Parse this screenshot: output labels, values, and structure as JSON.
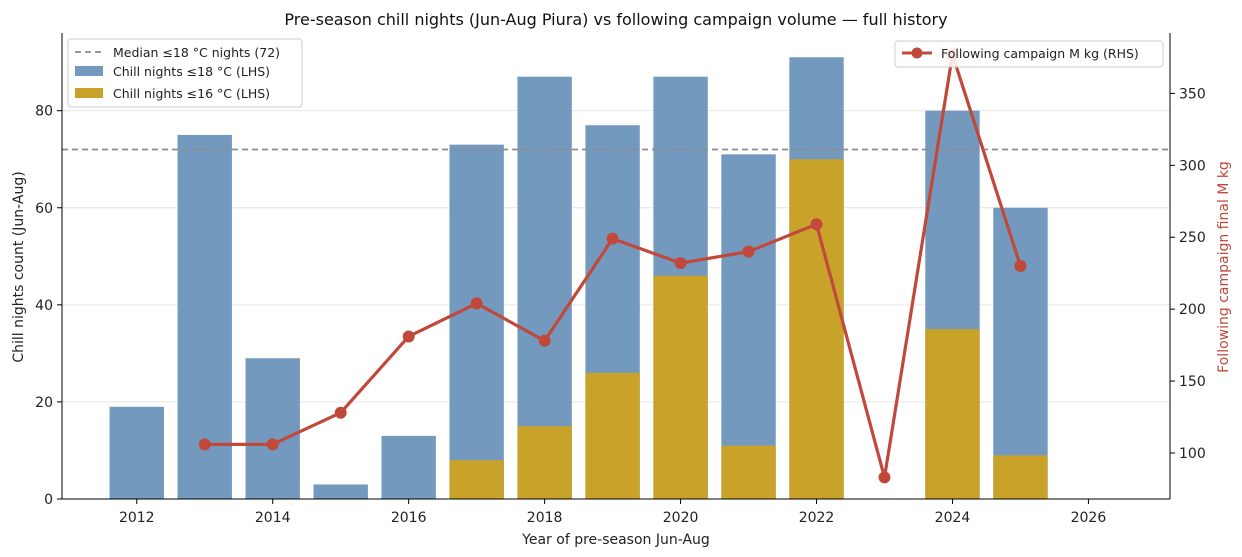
{
  "chart_data": {
    "type": "bar",
    "title": "Pre-season chill nights (Jun-Aug Piura) vs following campaign volume — full history",
    "xlabel": "Year of pre-season Jun-Aug",
    "ylabel": "Chill nights count (Jun-Aug)",
    "y2label": "Following campaign final M kg",
    "xlim": [
      2010.9,
      2027.2
    ],
    "ylim": [
      0,
      96
    ],
    "y2lim": [
      68,
      392
    ],
    "xticks": [
      2012,
      2014,
      2016,
      2018,
      2020,
      2022,
      2024,
      2026
    ],
    "yticks": [
      0,
      20,
      40,
      60,
      80
    ],
    "y2ticks": [
      100,
      150,
      200,
      250,
      300,
      350
    ],
    "grid": true,
    "median_line": {
      "label": "Median ≤18 °C nights (72)",
      "value": 72,
      "color": "#8c8c8c"
    },
    "series": [
      {
        "name": "Chill nights ≤18 °C (LHS)",
        "kind": "bar",
        "axis": "left",
        "color": "#7399bf",
        "x": [
          2012,
          2013,
          2014,
          2015,
          2016,
          2017,
          2018,
          2019,
          2020,
          2021,
          2022,
          2024,
          2025
        ],
        "values": [
          19,
          75,
          29,
          3,
          13,
          73,
          87,
          77,
          87,
          71,
          91,
          80,
          60
        ]
      },
      {
        "name": "Chill nights ≤16 °C (LHS)",
        "kind": "bar",
        "axis": "left",
        "color": "#c9a22a",
        "x": [
          2017,
          2018,
          2019,
          2020,
          2021,
          2022,
          2024,
          2025
        ],
        "values": [
          8,
          15,
          26,
          46,
          11,
          70,
          35,
          9
        ]
      },
      {
        "name": "Following campaign M kg (RHS)",
        "kind": "line",
        "axis": "right",
        "color": "#c0493b",
        "x": [
          2013,
          2014,
          2015,
          2016,
          2017,
          2018,
          2019,
          2020,
          2021,
          2022,
          2023,
          2024,
          2025
        ],
        "values": [
          106,
          106,
          128,
          181,
          204,
          178,
          249,
          232,
          240,
          259,
          83,
          377,
          230
        ]
      }
    ],
    "legend_left_placement": "top-left",
    "legend_right_placement": "top-right"
  }
}
